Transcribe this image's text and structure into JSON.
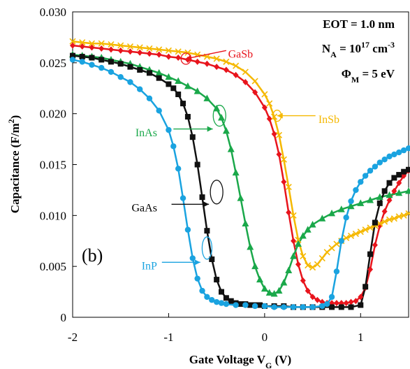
{
  "chart_data": {
    "type": "line",
    "xlabel": "Gate Voltage V",
    "xlabel_sub": "G",
    "xlabel_unit": " (V)",
    "ylabel": "Capacitance (F/m",
    "ylabel_sup": "2",
    "ylabel_end": ")",
    "xlim": [
      -2,
      1.5
    ],
    "ylim": [
      0,
      0.03
    ],
    "xticks": [
      -2,
      -1,
      0,
      1
    ],
    "xtick_labels": [
      "-2",
      "-1",
      "0",
      "1"
    ],
    "yticks": [
      0,
      0.005,
      0.01,
      0.015,
      0.02,
      0.025,
      0.03
    ],
    "ytick_labels": [
      "0",
      "0.005",
      "0.010",
      "0.015",
      "0.020",
      "0.025",
      "0.030"
    ],
    "grid": false,
    "panel_label": "(b)",
    "annotations": {
      "eot": "EOT = 1.0 nm",
      "na_prefix": "N",
      "na_sub": "A",
      "na_mid": " = 10",
      "na_sup": "17",
      "na_unit": " cm",
      "na_unit_sup": "-3",
      "phi_prefix": "Φ",
      "phi_sub": "M",
      "phi_rest": " = 5 eV"
    },
    "series": [
      {
        "name": "GaSb",
        "color": "#e8141c",
        "marker": "diamond",
        "x": [
          -2.0,
          -1.9,
          -1.8,
          -1.7,
          -1.6,
          -1.5,
          -1.4,
          -1.3,
          -1.2,
          -1.1,
          -1.0,
          -0.9,
          -0.8,
          -0.7,
          -0.6,
          -0.5,
          -0.4,
          -0.3,
          -0.2,
          -0.1,
          0.0,
          0.05,
          0.1,
          0.15,
          0.2,
          0.25,
          0.3,
          0.35,
          0.4,
          0.45,
          0.5,
          0.55,
          0.6,
          0.65,
          0.7,
          0.75,
          0.8,
          0.85,
          0.9,
          0.95,
          1.0,
          1.05,
          1.1,
          1.15,
          1.2,
          1.25,
          1.3,
          1.35,
          1.4,
          1.45,
          1.5
        ],
        "y": [
          0.0267,
          0.0266,
          0.0265,
          0.0264,
          0.0263,
          0.0262,
          0.0261,
          0.026,
          0.0259,
          0.0258,
          0.0256,
          0.0255,
          0.0253,
          0.0251,
          0.0249,
          0.0246,
          0.0243,
          0.0238,
          0.0231,
          0.0221,
          0.0206,
          0.0195,
          0.018,
          0.016,
          0.0133,
          0.0103,
          0.0075,
          0.0052,
          0.0036,
          0.0026,
          0.002,
          0.0017,
          0.0015,
          0.0014,
          0.0014,
          0.0014,
          0.0014,
          0.0014,
          0.0015,
          0.0016,
          0.002,
          0.0029,
          0.0047,
          0.0071,
          0.009,
          0.0104,
          0.0115,
          0.0124,
          0.0132,
          0.0139,
          0.0144
        ]
      },
      {
        "name": "InSb",
        "color": "#f5b800",
        "marker": "x",
        "x": [
          -2.0,
          -1.9,
          -1.8,
          -1.7,
          -1.6,
          -1.5,
          -1.4,
          -1.3,
          -1.2,
          -1.1,
          -1.0,
          -0.9,
          -0.8,
          -0.7,
          -0.6,
          -0.5,
          -0.4,
          -0.3,
          -0.2,
          -0.1,
          0.0,
          0.05,
          0.1,
          0.15,
          0.2,
          0.25,
          0.3,
          0.35,
          0.4,
          0.45,
          0.5,
          0.55,
          0.6,
          0.65,
          0.7,
          0.75,
          0.8,
          0.85,
          0.9,
          0.95,
          1.0,
          1.05,
          1.1,
          1.15,
          1.2,
          1.25,
          1.3,
          1.35,
          1.4,
          1.45,
          1.5
        ],
        "y": [
          0.0271,
          0.027,
          0.0269,
          0.0269,
          0.0268,
          0.0267,
          0.0266,
          0.0265,
          0.0264,
          0.0263,
          0.0262,
          0.0261,
          0.026,
          0.0258,
          0.0256,
          0.0254,
          0.0251,
          0.0247,
          0.0241,
          0.0232,
          0.0219,
          0.021,
          0.0197,
          0.0179,
          0.0155,
          0.0128,
          0.01,
          0.0076,
          0.006,
          0.0051,
          0.0049,
          0.0052,
          0.0058,
          0.0064,
          0.0068,
          0.0072,
          0.0075,
          0.0078,
          0.008,
          0.0082,
          0.0084,
          0.0086,
          0.0088,
          0.009,
          0.0092,
          0.0094,
          0.0096,
          0.0097,
          0.0099,
          0.01,
          0.0102
        ]
      },
      {
        "name": "InAs",
        "color": "#1aa84a",
        "marker": "triangle",
        "x": [
          -2.0,
          -1.9,
          -1.8,
          -1.7,
          -1.6,
          -1.5,
          -1.4,
          -1.3,
          -1.2,
          -1.1,
          -1.0,
          -0.9,
          -0.8,
          -0.7,
          -0.6,
          -0.5,
          -0.45,
          -0.4,
          -0.35,
          -0.3,
          -0.25,
          -0.2,
          -0.15,
          -0.1,
          -0.05,
          0.0,
          0.05,
          0.1,
          0.15,
          0.2,
          0.25,
          0.3,
          0.35,
          0.4,
          0.45,
          0.5,
          0.6,
          0.7,
          0.8,
          0.9,
          1.0,
          1.1,
          1.2,
          1.3,
          1.4,
          1.5
        ],
        "y": [
          0.0258,
          0.0257,
          0.0256,
          0.0255,
          0.0253,
          0.0251,
          0.0249,
          0.0246,
          0.0243,
          0.024,
          0.0236,
          0.0232,
          0.0227,
          0.0222,
          0.0215,
          0.0205,
          0.0196,
          0.0183,
          0.0165,
          0.0142,
          0.0117,
          0.0092,
          0.0069,
          0.005,
          0.0037,
          0.0028,
          0.0024,
          0.0023,
          0.0026,
          0.0034,
          0.0046,
          0.006,
          0.0072,
          0.008,
          0.0086,
          0.0091,
          0.0097,
          0.0102,
          0.0106,
          0.0109,
          0.0112,
          0.0115,
          0.0118,
          0.012,
          0.0122,
          0.0124
        ]
      },
      {
        "name": "GaAs",
        "color": "#111111",
        "marker": "square",
        "x": [
          -2.0,
          -1.9,
          -1.8,
          -1.7,
          -1.6,
          -1.5,
          -1.4,
          -1.3,
          -1.2,
          -1.1,
          -1.0,
          -0.95,
          -0.9,
          -0.85,
          -0.8,
          -0.75,
          -0.7,
          -0.65,
          -0.6,
          -0.55,
          -0.5,
          -0.45,
          -0.4,
          -0.35,
          -0.3,
          -0.25,
          -0.2,
          -0.15,
          -0.1,
          -0.05,
          0.0,
          0.1,
          0.2,
          0.3,
          0.4,
          0.5,
          0.6,
          0.7,
          0.8,
          0.9,
          1.0,
          1.05,
          1.1,
          1.15,
          1.2,
          1.25,
          1.3,
          1.35,
          1.4,
          1.45,
          1.5
        ],
        "y": [
          0.0257,
          0.0256,
          0.0255,
          0.0253,
          0.0251,
          0.0249,
          0.0246,
          0.0243,
          0.024,
          0.0235,
          0.0229,
          0.0225,
          0.0219,
          0.021,
          0.0197,
          0.0177,
          0.015,
          0.0118,
          0.0085,
          0.0057,
          0.0037,
          0.0025,
          0.0019,
          0.0016,
          0.0014,
          0.0013,
          0.0013,
          0.0012,
          0.0012,
          0.0012,
          0.0011,
          0.0011,
          0.0011,
          0.001,
          0.001,
          0.001,
          0.001,
          0.001,
          0.001,
          0.001,
          0.0012,
          0.003,
          0.0062,
          0.0093,
          0.0112,
          0.0124,
          0.0132,
          0.0137,
          0.014,
          0.0143,
          0.0145
        ]
      },
      {
        "name": "InP",
        "color": "#1aa3e0",
        "marker": "circle",
        "x": [
          -2.0,
          -1.9,
          -1.8,
          -1.7,
          -1.6,
          -1.5,
          -1.4,
          -1.3,
          -1.2,
          -1.1,
          -1.0,
          -0.95,
          -0.9,
          -0.85,
          -0.8,
          -0.75,
          -0.7,
          -0.65,
          -0.6,
          -0.55,
          -0.5,
          -0.45,
          -0.4,
          -0.3,
          -0.2,
          -0.1,
          0.0,
          0.1,
          0.2,
          0.3,
          0.4,
          0.5,
          0.6,
          0.65,
          0.7,
          0.75,
          0.8,
          0.85,
          0.9,
          0.95,
          1.0,
          1.05,
          1.1,
          1.15,
          1.2,
          1.25,
          1.3,
          1.35,
          1.4,
          1.45,
          1.5
        ],
        "y": [
          0.0253,
          0.0251,
          0.0248,
          0.0245,
          0.0241,
          0.0236,
          0.0231,
          0.0224,
          0.0215,
          0.0203,
          0.0184,
          0.0168,
          0.0146,
          0.0117,
          0.0086,
          0.0058,
          0.0038,
          0.0026,
          0.002,
          0.0017,
          0.0015,
          0.0014,
          0.0013,
          0.0012,
          0.0012,
          0.0011,
          0.0011,
          0.001,
          0.001,
          0.001,
          0.001,
          0.001,
          0.0011,
          0.0013,
          0.002,
          0.0045,
          0.0075,
          0.0098,
          0.0114,
          0.0125,
          0.0133,
          0.0139,
          0.0144,
          0.0148,
          0.0152,
          0.0155,
          0.0158,
          0.016,
          0.0162,
          0.0164,
          0.0166
        ]
      }
    ]
  }
}
